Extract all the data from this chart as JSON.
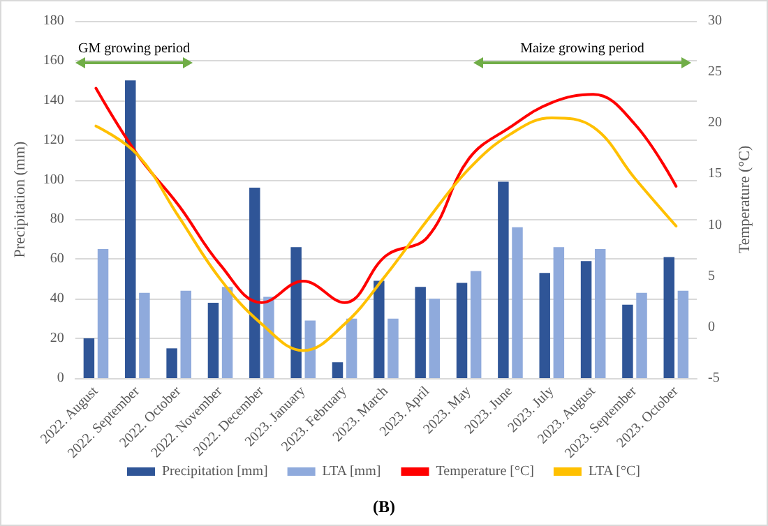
{
  "chart_data": {
    "type": "bar",
    "title": "(B)",
    "ylabel": "Precipitation (mm)",
    "y2label": "Temperature (°C)",
    "categories": [
      "2022. August",
      "2022. September",
      "2022. October",
      "2022. November",
      "2022. December",
      "2023. January",
      "2023. February",
      "2023. March",
      "2023. April",
      "2023. May",
      "2023. June",
      "2023. July",
      "2023. August",
      "2023. September",
      "2023. October"
    ],
    "series": [
      {
        "name": "Precipitation [mm]",
        "color": "#2f5597",
        "values": [
          20,
          150,
          15,
          38,
          96,
          66,
          8,
          49,
          46,
          48,
          99,
          53,
          59,
          37,
          61
        ]
      },
      {
        "name": "LTA [mm]",
        "color": "#8faadc",
        "values": [
          65,
          43,
          44,
          46,
          41,
          29,
          30,
          30,
          40,
          54,
          76,
          66,
          65,
          43,
          44
        ]
      },
      {
        "name": "Temperature [°C]",
        "type": "line",
        "axis": "y2",
        "color": "#ff0000",
        "values": [
          23.4,
          16.9,
          11.9,
          6.1,
          2.4,
          4.5,
          2.4,
          7.0,
          8.8,
          16.5,
          19.6,
          22.0,
          22.8,
          19.9,
          13.8
        ]
      },
      {
        "name": "LTA [°C]",
        "type": "line",
        "axis": "y2",
        "color": "#ffc000",
        "values": [
          19.7,
          16.9,
          10.8,
          4.7,
          0.3,
          -2.3,
          0.3,
          5.1,
          10.5,
          15.5,
          18.9,
          20.5,
          19.6,
          14.6,
          9.9
        ]
      }
    ],
    "ylim": [
      0,
      180
    ],
    "yticks": [
      0,
      20,
      40,
      60,
      80,
      100,
      120,
      140,
      160,
      180
    ],
    "y2lim": [
      -5,
      30
    ],
    "y2ticks": [
      -5,
      0,
      5,
      10,
      15,
      20,
      25,
      30
    ],
    "annotations": [
      "GM growing period",
      "Maize growing period"
    ],
    "grid": "y",
    "legend": "bottom",
    "marker": "none",
    "line_style": "solid"
  }
}
